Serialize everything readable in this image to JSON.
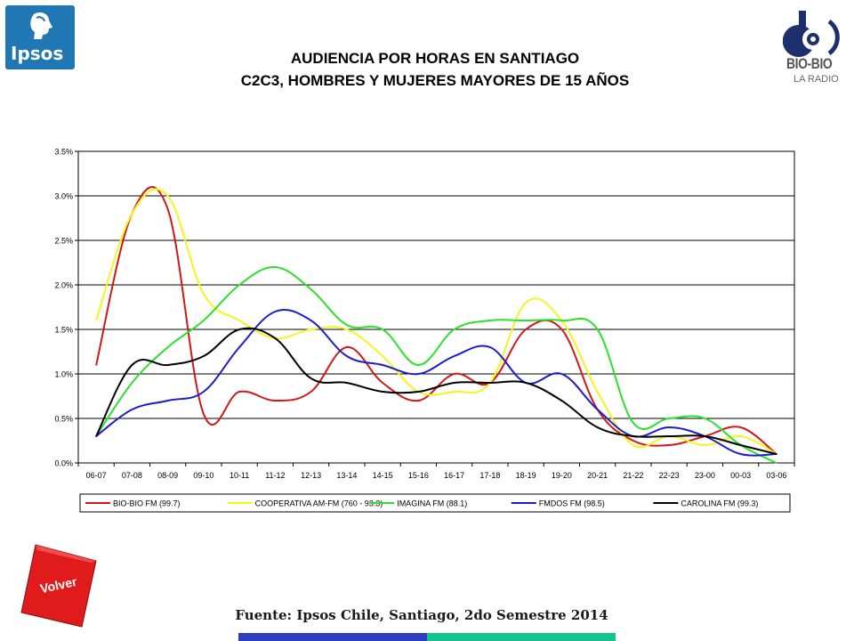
{
  "logos": {
    "left_text": "Ipsos",
    "right_text": "BIO-BIO",
    "right_sub": "LA RADIO"
  },
  "title_line1": "AUDIENCIA POR HORAS EN SANTIAGO",
  "title_line2": "C2C3, HOMBRES Y MUJERES MAYORES DE 15 AÑOS",
  "volver_label": "Volver",
  "source": "Fuente: Ipsos Chile, Santiago, 2do Semestre 2014",
  "colors": {
    "bar_left": "#2e3cbf",
    "bar_right": "#14c58f",
    "volver": "#e01b1b",
    "ipsos": "#1f78b4"
  },
  "chart_data": {
    "type": "line",
    "title": "",
    "xlabel": "",
    "ylabel": "",
    "ylim": [
      0,
      3.5
    ],
    "yticks": [
      0,
      0.5,
      1.0,
      1.5,
      2.0,
      2.5,
      3.0,
      3.5
    ],
    "ytick_labels": [
      "0.0%",
      "0.5%",
      "1.0%",
      "1.5%",
      "2.0%",
      "2.5%",
      "3.0%",
      "3.5%"
    ],
    "grid": true,
    "legend_position": "bottom",
    "categories": [
      "06-07",
      "07-08",
      "08-09",
      "09-10",
      "10-11",
      "11-12",
      "12-13",
      "13-14",
      "14-15",
      "15-16",
      "16-17",
      "17-18",
      "18-19",
      "19-20",
      "20-21",
      "21-22",
      "22-23",
      "23-00",
      "00-03",
      "03-06"
    ],
    "series": [
      {
        "name": "BIO-BIO FM (99.7)",
        "color": "#d01818",
        "values": [
          1.1,
          2.8,
          2.85,
          0.55,
          0.8,
          0.7,
          0.8,
          1.3,
          0.9,
          0.7,
          1.0,
          0.9,
          1.5,
          1.5,
          0.6,
          0.25,
          0.2,
          0.3,
          0.4,
          0.1
        ]
      },
      {
        "name": "COOPERATIVA AM-FM (760 - 93.3)",
        "color": "#f5f51e",
        "values": [
          1.6,
          2.8,
          3.0,
          1.9,
          1.6,
          1.4,
          1.5,
          1.5,
          1.2,
          0.8,
          0.8,
          0.9,
          1.8,
          1.6,
          0.8,
          0.2,
          0.3,
          0.2,
          0.3,
          0.1
        ]
      },
      {
        "name": "IMAGINA FM (88.1)",
        "color": "#2ee02e",
        "values": [
          0.3,
          0.9,
          1.3,
          1.6,
          2.0,
          2.2,
          1.95,
          1.55,
          1.5,
          1.1,
          1.5,
          1.6,
          1.6,
          1.6,
          1.5,
          0.45,
          0.5,
          0.5,
          0.2,
          0.0
        ]
      },
      {
        "name": "FMDOS FM (98.5)",
        "color": "#1c1ccc",
        "values": [
          0.3,
          0.6,
          0.7,
          0.8,
          1.3,
          1.7,
          1.6,
          1.2,
          1.1,
          1.0,
          1.2,
          1.3,
          0.9,
          1.0,
          0.6,
          0.3,
          0.4,
          0.3,
          0.1,
          0.1
        ]
      },
      {
        "name": "CAROLINA FM (99.3)",
        "color": "#000000",
        "values": [
          0.3,
          1.1,
          1.1,
          1.2,
          1.5,
          1.4,
          0.95,
          0.9,
          0.8,
          0.8,
          0.9,
          0.9,
          0.9,
          0.7,
          0.4,
          0.3,
          0.3,
          0.3,
          0.2,
          0.1
        ]
      }
    ]
  }
}
